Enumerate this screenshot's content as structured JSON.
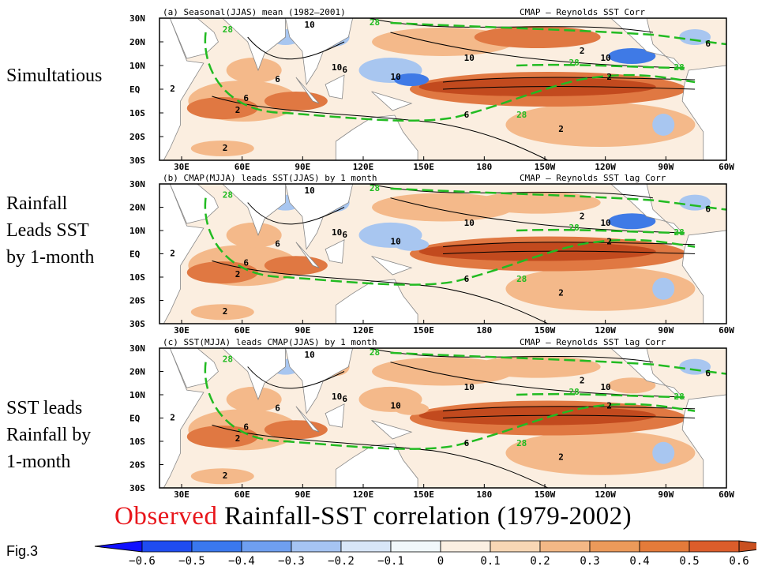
{
  "side_labels": {
    "a": "Simultatious",
    "b_line1": "Rainfall",
    "b_line2": "Leads SST",
    "b_line3": "by 1-month",
    "c_line1": "SST leads",
    "c_line2": "Rainfall by",
    "c_line3": "1-month"
  },
  "panels": [
    {
      "title": "(a) Seasonal(JJAS) mean (1982–2001)",
      "subtitle": "CMAP – Reynolds SST Corr"
    },
    {
      "title": "(b) CMAP(MJJA) leads SST(JJAS) by 1 month",
      "subtitle": "CMAP – Reynolds SST lag Corr"
    },
    {
      "title": "(c) SST(MJJA) leads CMAP(JJAS) by 1 month",
      "subtitle": "CMAP – Reynolds SST lag Corr"
    }
  ],
  "lat_labels": [
    "30N",
    "20N",
    "10N",
    "EQ",
    "10S",
    "20S",
    "30S"
  ],
  "lon_labels": [
    "30E",
    "60E",
    "90E",
    "120E",
    "150E",
    "180",
    "150W",
    "120W",
    "90W",
    "60W"
  ],
  "contour_labels": {
    "two": "2",
    "six": "6",
    "ten": "10",
    "sst": "28"
  },
  "caption_red": "Observed",
  "caption_black": " Rainfall-SST correlation (1979-2002)",
  "fig_label": "Fig.3",
  "colorbar": {
    "ticks": [
      "−0.6",
      "−0.5",
      "−0.4",
      "−0.3",
      "−0.2",
      "−0.1",
      "0",
      "0.1",
      "0.2",
      "0.3",
      "0.4",
      "0.5",
      "0.6"
    ],
    "colors": [
      "#1f4cf0",
      "#3a78ee",
      "#6f9ff0",
      "#a6c4f3",
      "#d8e6f8",
      "#f1f8fb",
      "#fbefe2",
      "#f8d7b5",
      "#f3b886",
      "#ec9a5a",
      "#e47b3a",
      "#dc5d2b"
    ],
    "end_low": "#1010ff",
    "end_high": "#c95020"
  },
  "map_colors": {
    "ocean": "#fbeee0",
    "land": "#ffffff",
    "warm": "#e07842",
    "hot": "#c24a1e",
    "light_warm": "#f4b98a",
    "cool": "#a8c6f0",
    "cold": "#3f7ae6",
    "sst_contour": "#22bb22"
  }
}
